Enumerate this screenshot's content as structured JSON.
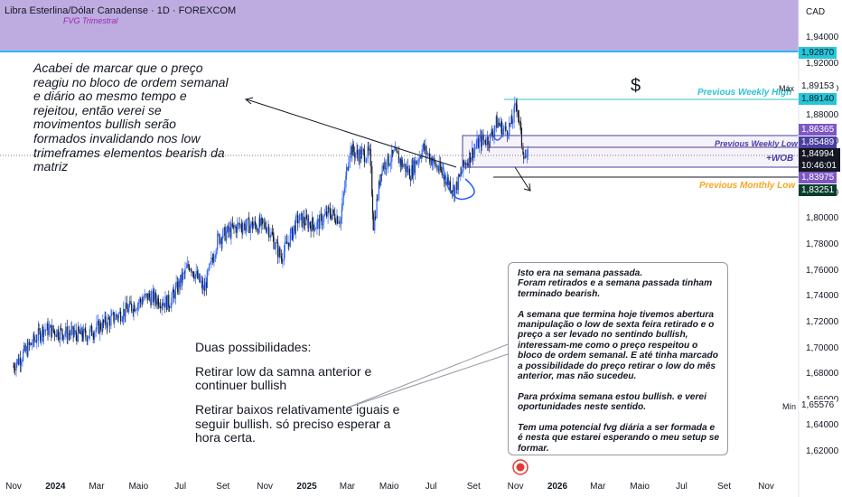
{
  "header": {
    "symbol": "Libra Esterlina/Dólar Canadense · 1D · FOREXCOM",
    "zone_label": "FVG Trimestral"
  },
  "currency": "CAD",
  "notes": {
    "left": "Acabei de marcar que o preço reagiu no bloco de ordem semanal e diário ao mesmo tempo e rejeitou, então verei se movimentos bullish serão formados invalidando nos low trimeframes elementos bearish  da matriz",
    "middle": [
      "Duas possibilidades:",
      "Retirar low da samna anterior e continuer bullish",
      "Retirar baixos relativamente iguais e seguir bullish. só preciso esperar a hora certa."
    ],
    "box": [
      "Isto era na semana passada.",
      "Foram retirados e a semana passada tinham terminado bearish.",
      "",
      "A semana que termina hoje tivemos abertura manipulação o low de sexta feira retirado e o preço a ser levado no sentindo bullish, interessam-me como o preço respeitou o bloco de ordem semanal. E até tinha marcado a possibilidade do preço retirar o low do mês anterior, mas não sucedeu.",
      "",
      "Para próxima semana estou bullish. e verei oportunidades neste sentido.",
      "",
      "Tem uma potencial fvg diária a ser formada e é nesta que estarei esperando o meu setup se formar."
    ]
  },
  "levels": {
    "weekly_high": {
      "label": "Previous Weekly High",
      "value": 1.8914,
      "color": "#2dc2d4"
    },
    "weekly_low": {
      "label": "Previous Weekly Low",
      "value": 1.85489,
      "color": "#4a3f9e"
    },
    "monthly_low": {
      "label": "Previous Monthly Low",
      "value": 1.83251,
      "color": "#f5a623"
    },
    "weekly_ob_label": "+WOB"
  },
  "price_tags": {
    "fvg": "1,92870",
    "max_label": "Máx",
    "max": "1,89153",
    "pwh": "1,89140",
    "ob_top": "1,86365",
    "pwl": "1,85489",
    "last": "1,84994",
    "countdown": "10:46:01",
    "ob_bottom": "1,83975",
    "pml": "1,83251",
    "min_label": "Mín",
    "min": "1,65576"
  },
  "glyphs": {
    "dollar": "$"
  },
  "colors": {
    "fvg_zone": "#b39ddb",
    "up": "#2962ff",
    "down": "#131722",
    "ob_zone": "#7e57c2"
  },
  "chart_data": {
    "type": "candlestick",
    "title": "Libra Esterlina/Dólar Canadense · 1D · FOREXCOM",
    "ylabel": "CAD",
    "ylim": [
      1.6,
      1.96
    ],
    "y_ticks": [
      "1,94000",
      "1,92000",
      "1,90000",
      "1,88000",
      "1,86000",
      "1,84000",
      "1,82000",
      "1,80000",
      "1,78000",
      "1,76000",
      "1,74000",
      "1,72000",
      "1,70000",
      "1,68000",
      "1,66000",
      "1,64000",
      "1,62000"
    ],
    "x_ticks": [
      "Nov",
      "2024",
      "Mar",
      "Maio",
      "Jul",
      "Set",
      "Nov",
      "2025",
      "Mar",
      "Maio",
      "Jul",
      "Set",
      "Nov",
      "2026",
      "Mar",
      "Maio",
      "Jul",
      "Set",
      "Nov"
    ],
    "price_path": [
      [
        "2023-11-01",
        1.686
      ],
      [
        "2023-12-15",
        1.715
      ],
      [
        "2024-01-15",
        1.712
      ],
      [
        "2024-02-15",
        1.71
      ],
      [
        "2024-03-15",
        1.72
      ],
      [
        "2024-04-15",
        1.73
      ],
      [
        "2024-05-15",
        1.74
      ],
      [
        "2024-06-15",
        1.735
      ],
      [
        "2024-07-15",
        1.765
      ],
      [
        "2024-08-05",
        1.745
      ],
      [
        "2024-08-25",
        1.785
      ],
      [
        "2024-09-25",
        1.795
      ],
      [
        "2024-10-20",
        1.795
      ],
      [
        "2024-11-05",
        1.795
      ],
      [
        "2024-11-25",
        1.77
      ],
      [
        "2024-12-20",
        1.8
      ],
      [
        "2025-01-15",
        1.795
      ],
      [
        "2025-02-03",
        1.805
      ],
      [
        "2025-02-20",
        1.8
      ],
      [
        "2025-03-05",
        1.855
      ],
      [
        "2025-03-15",
        1.85
      ],
      [
        "2025-04-03",
        1.85
      ],
      [
        "2025-04-09",
        1.795
      ],
      [
        "2025-04-20",
        1.84
      ],
      [
        "2025-05-10",
        1.85
      ],
      [
        "2025-06-01",
        1.835
      ],
      [
        "2025-06-20",
        1.855
      ],
      [
        "2025-07-10",
        1.84
      ],
      [
        "2025-07-25",
        1.83
      ],
      [
        "2025-08-05",
        1.822
      ],
      [
        "2025-08-20",
        1.843
      ],
      [
        "2025-09-10",
        1.86
      ],
      [
        "2025-09-25",
        1.862
      ],
      [
        "2025-10-05",
        1.875
      ],
      [
        "2025-10-18",
        1.868
      ],
      [
        "2025-10-28",
        1.875
      ],
      [
        "2025-11-03",
        1.891
      ],
      [
        "2025-11-12",
        1.855
      ],
      [
        "2025-11-18",
        1.845
      ],
      [
        "2025-11-21",
        1.85
      ]
    ],
    "highs": {
      "Máx": 1.89153,
      "Mín": 1.65576
    },
    "last": 1.84994,
    "zones": [
      {
        "name": "FVG Trimestral",
        "from": 1.924,
        "to": 1.96
      },
      {
        "name": "+WOB",
        "from": 1.83975,
        "to": 1.86365
      }
    ],
    "lines": [
      {
        "name": "Previous Weekly High",
        "value": 1.8914
      },
      {
        "name": "Previous Weekly Low",
        "value": 1.85489
      },
      {
        "name": "Previous Monthly Low",
        "value": 1.83251
      }
    ]
  }
}
